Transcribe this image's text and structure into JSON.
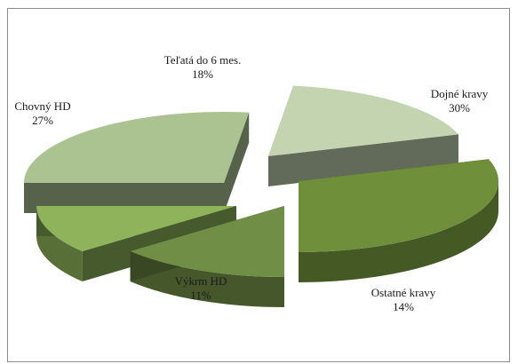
{
  "chart_data": {
    "type": "pie",
    "title": "",
    "categories": [
      "Dojné kravy",
      "Ostatné kravy",
      "Výkrm HD",
      "Chovný HD",
      "Teľatá do 6 mes."
    ],
    "values": [
      30,
      14,
      11,
      27,
      18
    ],
    "value_labels": [
      "30%",
      "14%",
      "11%",
      "27%",
      "18%"
    ],
    "exploded": true,
    "three_d": true,
    "colors": {
      "Dojné kravy": "#6f8f3b",
      "Ostatné kravy": "#718e46",
      "Výkrm HD": "#8eb35a",
      "Chovný HD": "#abc391",
      "Teľatá do 6 mes.": "#c4d4b1"
    },
    "legend": "none"
  }
}
